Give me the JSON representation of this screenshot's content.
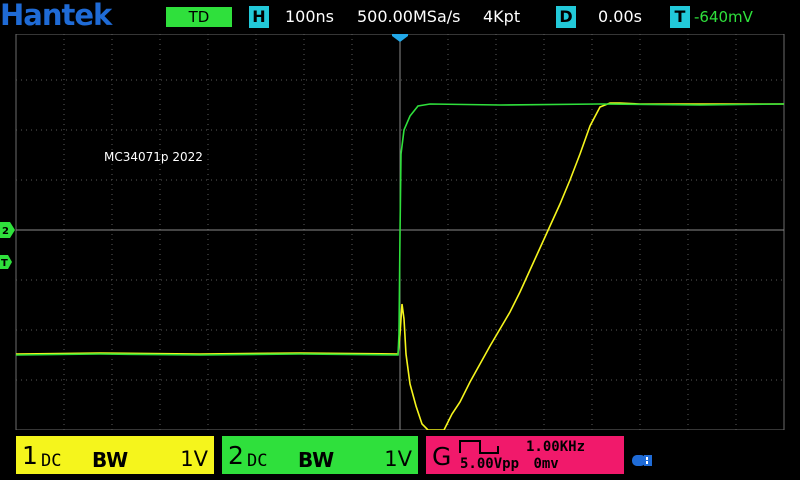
{
  "header": {
    "logo": "Hantek",
    "mode": "TD",
    "h_icon": "H",
    "timebase": "100ns",
    "sample_rate": "500.00MSa/s",
    "memory_depth": "4Kpt",
    "d_icon": "D",
    "delay": "0.00s",
    "t_icon": "T",
    "trigger_level": "-640mV"
  },
  "screen": {
    "annotation": "MC34071p 2022",
    "markers": {
      "ch2": "2",
      "trigger": "T"
    },
    "colors": {
      "ch1": "#f5f51c",
      "ch2": "#2fe03c",
      "grid": "#6b6b6b",
      "trigger_marker": "#22a8e8"
    }
  },
  "channels": [
    {
      "num": "1",
      "coupling": "DC",
      "bw": "BW",
      "scale": "1V"
    },
    {
      "num": "2",
      "coupling": "DC",
      "bw": "BW",
      "scale": "1V"
    }
  ],
  "generator": {
    "label": "G",
    "frequency": "1.00KHz",
    "amplitude": "5.00Vpp",
    "offset": "0mv",
    "wave_icon": "square-wave-icon"
  },
  "status": {
    "usb_icon": "usb-icon"
  }
}
